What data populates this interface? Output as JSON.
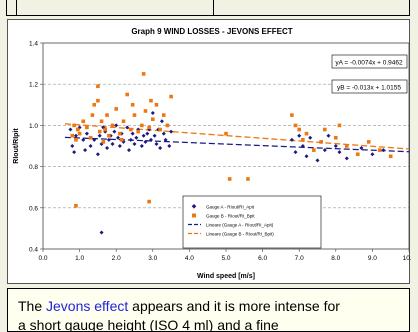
{
  "chart_data": {
    "type": "scatter",
    "title": "Graph 9  WIND LOSSES - JEVONS EFFECT",
    "xlabel": "Wind speed [m/s]",
    "ylabel": "RIout/RIpit",
    "xlim": [
      0,
      10
    ],
    "ylim": [
      0.4,
      1.4
    ],
    "xticks": [
      "0.0",
      "1.0",
      "2.0",
      "3.0",
      "4.0",
      "5.0",
      "6.0",
      "7.0",
      "8.0",
      "9.0",
      "10.0"
    ],
    "yticks": [
      "0.4",
      "0.6",
      "0.8",
      "1.0",
      "1.2",
      "1.4"
    ],
    "grid": "horizontal dashed",
    "legend_position": "bottom-center",
    "series": [
      {
        "name": "Gauge A - RIout/RI_Apit",
        "marker": "diamond",
        "color": "#1a1a80",
        "points": [
          [
            0.75,
            0.98
          ],
          [
            0.8,
            0.9
          ],
          [
            0.85,
            0.87
          ],
          [
            0.9,
            0.95
          ],
          [
            1.0,
            0.99
          ],
          [
            1.1,
            0.93
          ],
          [
            1.15,
            0.88
          ],
          [
            1.2,
            0.96
          ],
          [
            1.3,
            0.9
          ],
          [
            1.4,
            0.93
          ],
          [
            1.5,
            0.86
          ],
          [
            1.55,
            0.95
          ],
          [
            1.6,
            0.91
          ],
          [
            1.65,
            0.99
          ],
          [
            1.7,
            0.97
          ],
          [
            1.75,
            0.89
          ],
          [
            1.8,
            0.93
          ],
          [
            1.85,
            0.95
          ],
          [
            1.9,
            0.91
          ],
          [
            1.95,
            0.97
          ],
          [
            2.0,
            1.0
          ],
          [
            2.05,
            0.94
          ],
          [
            2.1,
            0.9
          ],
          [
            2.15,
            0.96
          ],
          [
            2.2,
            0.92
          ],
          [
            2.3,
            0.99
          ],
          [
            2.35,
            0.88
          ],
          [
            2.4,
            0.93
          ],
          [
            2.45,
            0.96
          ],
          [
            2.5,
            0.91
          ],
          [
            2.55,
            0.94
          ],
          [
            2.6,
            0.98
          ],
          [
            2.7,
            0.9
          ],
          [
            2.75,
            0.95
          ],
          [
            2.8,
            0.92
          ],
          [
            2.85,
            0.96
          ],
          [
            2.9,
            0.98
          ],
          [
            2.95,
            0.93
          ],
          [
            3.0,
            1.06
          ],
          [
            3.05,
            0.95
          ],
          [
            3.1,
            0.91
          ],
          [
            3.15,
            0.98
          ],
          [
            3.2,
            0.89
          ],
          [
            3.25,
            1.02
          ],
          [
            3.3,
            0.96
          ],
          [
            3.35,
            0.93
          ],
          [
            3.4,
            1.0
          ],
          [
            3.45,
            0.9
          ],
          [
            3.5,
            0.97
          ],
          [
            1.6,
            0.48
          ],
          [
            6.8,
            0.93
          ],
          [
            6.9,
            0.87
          ],
          [
            7.0,
            0.95
          ],
          [
            7.1,
            0.9
          ],
          [
            7.2,
            0.85
          ],
          [
            7.3,
            0.94
          ],
          [
            7.5,
            0.83
          ],
          [
            7.6,
            0.92
          ],
          [
            7.7,
            0.88
          ],
          [
            7.8,
            0.95
          ],
          [
            8.0,
            0.9
          ],
          [
            8.1,
            0.87
          ],
          [
            8.3,
            0.84
          ],
          [
            8.7,
            0.89
          ],
          [
            9.0,
            0.86
          ],
          [
            9.3,
            0.88
          ]
        ]
      },
      {
        "name": "Gauge B - RIout/RI_Bpit",
        "marker": "square",
        "color": "#ee7711",
        "points": [
          [
            0.8,
            0.95
          ],
          [
            0.85,
            1.0
          ],
          [
            0.9,
            0.93
          ],
          [
            0.95,
            0.98
          ],
          [
            1.0,
            0.96
          ],
          [
            1.1,
            1.02
          ],
          [
            1.2,
            0.99
          ],
          [
            1.3,
            0.94
          ],
          [
            1.35,
            1.05
          ],
          [
            1.4,
            1.1
          ],
          [
            1.5,
            1.12
          ],
          [
            1.55,
            0.97
          ],
          [
            1.6,
            1.02
          ],
          [
            1.65,
            0.92
          ],
          [
            1.7,
            0.98
          ],
          [
            1.75,
            1.05
          ],
          [
            1.8,
            0.95
          ],
          [
            1.9,
            1.0
          ],
          [
            2.0,
            1.08
          ],
          [
            2.1,
            0.96
          ],
          [
            2.15,
            0.93
          ],
          [
            2.2,
            1.02
          ],
          [
            2.3,
            1.15
          ],
          [
            2.4,
            0.98
          ],
          [
            2.45,
            1.1
          ],
          [
            2.5,
            1.05
          ],
          [
            2.6,
            0.97
          ],
          [
            2.7,
            1.0
          ],
          [
            2.75,
            1.25
          ],
          [
            2.8,
            1.07
          ],
          [
            2.9,
            0.99
          ],
          [
            2.95,
            1.12
          ],
          [
            3.0,
            1.03
          ],
          [
            3.1,
            1.1
          ],
          [
            3.2,
            0.98
          ],
          [
            3.3,
            1.05
          ],
          [
            3.4,
            1.0
          ],
          [
            3.5,
            1.14
          ],
          [
            1.5,
            1.19
          ],
          [
            0.9,
            0.61
          ],
          [
            2.9,
            0.63
          ],
          [
            5.0,
            0.96
          ],
          [
            5.1,
            0.74
          ],
          [
            5.6,
            0.74
          ],
          [
            6.8,
            1.05
          ],
          [
            6.9,
            1.0
          ],
          [
            7.0,
            0.98
          ],
          [
            7.1,
            0.93
          ],
          [
            7.2,
            0.96
          ],
          [
            7.4,
            0.88
          ],
          [
            7.6,
            0.92
          ],
          [
            7.7,
            0.98
          ],
          [
            8.0,
            0.94
          ],
          [
            8.1,
            1.0
          ],
          [
            8.3,
            0.9
          ],
          [
            8.6,
            0.86
          ],
          [
            8.9,
            0.92
          ],
          [
            9.2,
            0.88
          ],
          [
            9.5,
            0.85
          ]
        ]
      }
    ],
    "trendlines": [
      {
        "name": "Lineare (Gauge A - RIout/RI_Apit)",
        "slope": -0.0074,
        "intercept": 0.9462,
        "color": "#1a1a80",
        "x_range": [
          0.6,
          10
        ]
      },
      {
        "name": "Lineare (Gauge B - RIout/RI_Bpit)",
        "slope": -0.013,
        "intercept": 1.0155,
        "color": "#ee7711",
        "x_range": [
          0.6,
          10
        ]
      }
    ],
    "equations": [
      "yA = -0.0074x + 0.9462",
      "yB = -0.013x + 1.0155"
    ]
  },
  "caption": {
    "prefix": "The ",
    "link": "Jevons effect",
    "suffix": " appears and it is more intense for",
    "line2": "a short gauge height (ISO 4 ml) and a fine"
  }
}
